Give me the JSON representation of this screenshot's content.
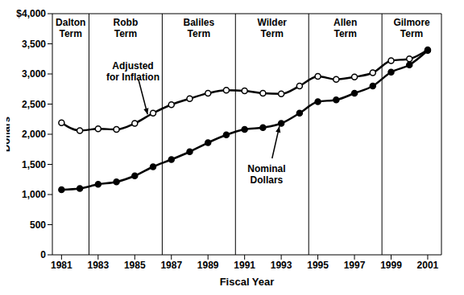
{
  "chart_data": {
    "type": "line",
    "x_label": "Fiscal Year",
    "y_label": "Dollars",
    "x": [
      1981,
      1982,
      1983,
      1984,
      1985,
      1986,
      1987,
      1988,
      1989,
      1990,
      1991,
      1992,
      1993,
      1994,
      1995,
      1996,
      1997,
      1998,
      1999,
      2000,
      2001
    ],
    "series": [
      {
        "name": "Adjusted for Inflation",
        "color": "#000000",
        "marker": "open_circle",
        "values": [
          2190,
          2060,
          2090,
          2080,
          2180,
          2350,
          2490,
          2590,
          2680,
          2730,
          2720,
          2680,
          2670,
          2800,
          2960,
          2910,
          2950,
          3020,
          3220,
          3250,
          3400
        ]
      },
      {
        "name": "Nominal Dollars",
        "color": "#000000",
        "marker": "circle",
        "values": [
          1080,
          1100,
          1170,
          1210,
          1310,
          1460,
          1580,
          1710,
          1860,
          1990,
          2080,
          2110,
          2180,
          2350,
          2540,
          2570,
          2680,
          2800,
          3030,
          3150,
          3390
        ]
      }
    ],
    "xlim": [
      1980.5,
      2001.75
    ],
    "xticks": [
      1981,
      1983,
      1985,
      1987,
      1989,
      1991,
      1993,
      1995,
      1997,
      1999,
      2001
    ],
    "ylim": [
      0,
      4000
    ],
    "yticks": [
      0,
      500,
      {
        "value": 1000,
        "label": "1,000"
      },
      {
        "value": 1500,
        "label": "1,500"
      },
      {
        "value": 2000,
        "label": "2,000"
      },
      {
        "value": 2500,
        "label": "2,500"
      },
      {
        "value": 3000,
        "label": "3,000"
      },
      {
        "value": 3500,
        "label": "3,500"
      },
      {
        "value": 4000,
        "label": "$4,000"
      }
    ],
    "grid": false,
    "terms": [
      {
        "label": "Dalton Term",
        "start": 1980.5,
        "end": 1982.5
      },
      {
        "label": "Robb Term",
        "start": 1982.5,
        "end": 1986.5
      },
      {
        "label": "Baliles Term",
        "start": 1986.5,
        "end": 1990.5
      },
      {
        "label": "Wilder Term",
        "start": 1990.5,
        "end": 1994.5
      },
      {
        "label": "Allen Term",
        "start": 1994.5,
        "end": 1998.5
      },
      {
        "label": "Gilmore Term",
        "start": 1998.5,
        "end": 2001.75
      }
    ],
    "annotations": [
      {
        "text": "Adjusted for Inflation",
        "x": 1984.9,
        "y": 3040,
        "arrow_x": 1985.7,
        "arrow_y": 2330
      },
      {
        "text": "Nominal Dollars",
        "x": 1992.2,
        "y": 1340,
        "arrow_x": 1992.9,
        "arrow_y": 2130
      }
    ]
  }
}
